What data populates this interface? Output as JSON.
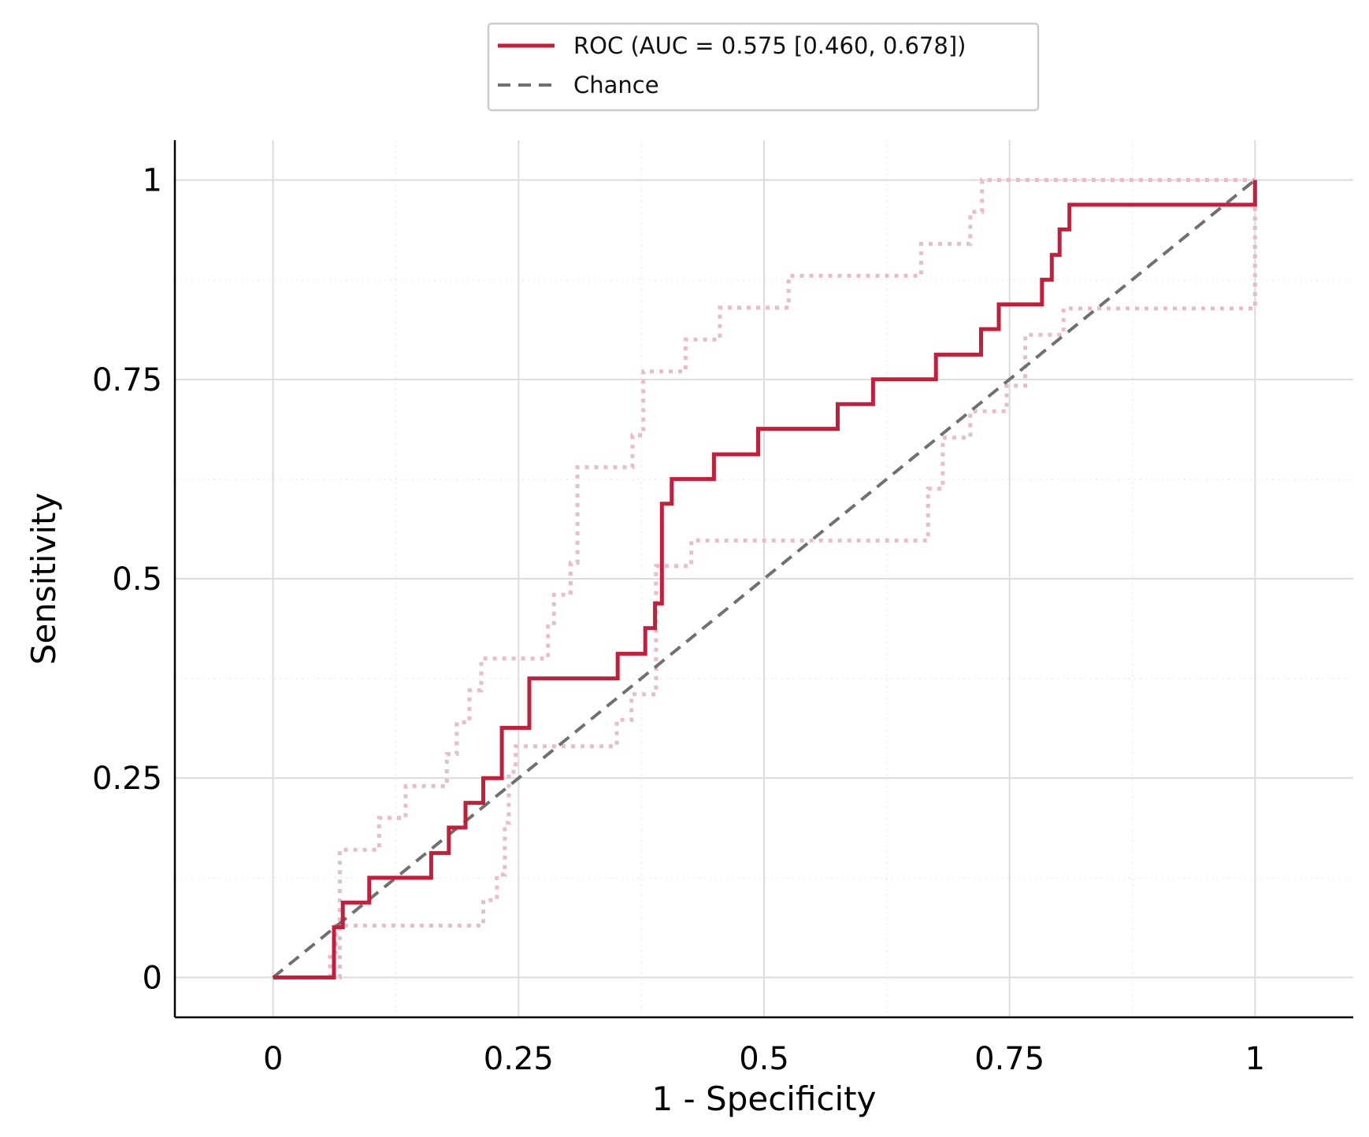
{
  "chart_data": {
    "type": "line",
    "xlabel": "1 - Specificity",
    "ylabel": "Sensitivity",
    "xlim": [
      -0.1,
      1.1
    ],
    "ylim": [
      -0.05,
      1.05
    ],
    "x_ticks": [
      0,
      0.25,
      0.5,
      0.75,
      1
    ],
    "x_tick_labels": [
      "0",
      "0.25",
      "0.5",
      "0.75",
      "1"
    ],
    "y_ticks": [
      0,
      0.25,
      0.5,
      0.75,
      1
    ],
    "y_tick_labels": [
      "0",
      "0.25",
      "0.5",
      "0.75",
      "1"
    ],
    "grid": true,
    "legend_position": "top-center",
    "legend": [
      {
        "label": "ROC (AUC = 0.575 [0.460, 0.678])",
        "color": "#c41e3a",
        "style": "solid"
      },
      {
        "label": "Chance",
        "color": "#707070",
        "style": "dashed"
      }
    ],
    "series": [
      {
        "name": "ROC (AUC = 0.575 [0.460, 0.678])",
        "color": "#c41e3a",
        "style": "solid",
        "x": [
          0,
          0.062,
          0.062,
          0.071,
          0.071,
          0.098,
          0.098,
          0.161,
          0.161,
          0.179,
          0.179,
          0.196,
          0.196,
          0.214,
          0.214,
          0.233,
          0.233,
          0.261,
          0.261,
          0.351,
          0.351,
          0.379,
          0.379,
          0.389,
          0.389,
          0.396,
          0.396,
          0.406,
          0.406,
          0.449,
          0.449,
          0.494,
          0.494,
          0.575,
          0.575,
          0.611,
          0.611,
          0.675,
          0.675,
          0.721,
          0.721,
          0.739,
          0.739,
          0.783,
          0.783,
          0.793,
          0.793,
          0.801,
          0.801,
          0.811,
          0.811,
          1.0,
          1.0
        ],
        "y": [
          0,
          0,
          0.063,
          0.063,
          0.094,
          0.094,
          0.125,
          0.125,
          0.156,
          0.156,
          0.188,
          0.188,
          0.219,
          0.219,
          0.25,
          0.25,
          0.313,
          0.313,
          0.375,
          0.375,
          0.406,
          0.406,
          0.438,
          0.438,
          0.469,
          0.469,
          0.594,
          0.594,
          0.625,
          0.625,
          0.656,
          0.656,
          0.688,
          0.688,
          0.719,
          0.719,
          0.75,
          0.75,
          0.781,
          0.781,
          0.813,
          0.813,
          0.844,
          0.844,
          0.875,
          0.875,
          0.906,
          0.906,
          0.938,
          0.938,
          0.969,
          0.969,
          1.0
        ]
      },
      {
        "name": "",
        "color": "#e9b7c6",
        "style": "dotted",
        "x": [
          0,
          0.068,
          0.068,
          0.108,
          0.108,
          0.135,
          0.135,
          0.177,
          0.177,
          0.187,
          0.187,
          0.2,
          0.2,
          0.212,
          0.212,
          0.28,
          0.28,
          0.286,
          0.286,
          0.303,
          0.303,
          0.31,
          0.31,
          0.366,
          0.366,
          0.377,
          0.377,
          0.42,
          0.42,
          0.455,
          0.455,
          0.525,
          0.525,
          0.66,
          0.66,
          0.71,
          0.71,
          0.722,
          0.722,
          1.0,
          1.0
        ],
        "y": [
          0,
          0,
          0.16,
          0.16,
          0.2,
          0.2,
          0.24,
          0.24,
          0.28,
          0.28,
          0.32,
          0.32,
          0.36,
          0.36,
          0.4,
          0.4,
          0.44,
          0.44,
          0.48,
          0.48,
          0.52,
          0.52,
          0.64,
          0.64,
          0.68,
          0.68,
          0.76,
          0.76,
          0.8,
          0.8,
          0.84,
          0.84,
          0.88,
          0.88,
          0.92,
          0.92,
          0.96,
          0.96,
          1.0,
          1.0,
          1.0
        ]
      },
      {
        "name": "",
        "color": "#e9b7c6",
        "style": "dotted",
        "x": [
          0,
          0.058,
          0.058,
          0.064,
          0.064,
          0.214,
          0.214,
          0.228,
          0.228,
          0.236,
          0.236,
          0.24,
          0.24,
          0.247,
          0.247,
          0.35,
          0.35,
          0.365,
          0.365,
          0.39,
          0.39,
          0.426,
          0.426,
          0.521,
          0.521,
          0.667,
          0.667,
          0.682,
          0.682,
          0.71,
          0.71,
          0.747,
          0.747,
          0.766,
          0.766,
          0.805,
          0.805,
          0.818,
          0.818,
          1.0,
          1.0
        ],
        "y": [
          0,
          0,
          0.032,
          0.032,
          0.065,
          0.065,
          0.097,
          0.097,
          0.129,
          0.129,
          0.194,
          0.194,
          0.258,
          0.258,
          0.29,
          0.29,
          0.323,
          0.323,
          0.355,
          0.355,
          0.516,
          0.516,
          0.548,
          0.548,
          0.548,
          0.548,
          0.613,
          0.613,
          0.677,
          0.677,
          0.71,
          0.71,
          0.742,
          0.742,
          0.806,
          0.806,
          0.839,
          0.839,
          0.839,
          0.839,
          1.0
        ]
      },
      {
        "name": "Chance",
        "color": "#707070",
        "style": "dashed",
        "x": [
          0,
          1
        ],
        "y": [
          0,
          1
        ]
      }
    ]
  }
}
